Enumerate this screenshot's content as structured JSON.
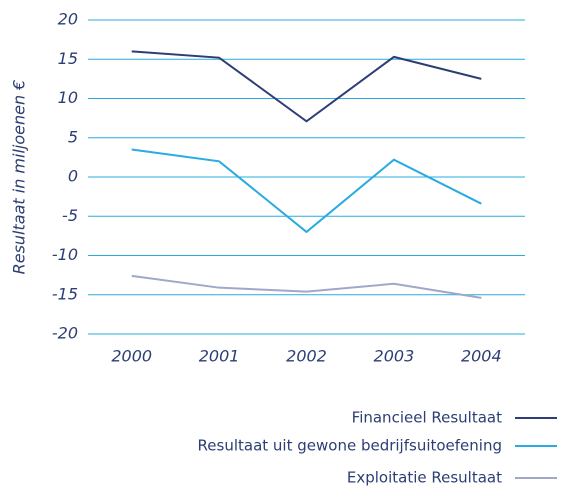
{
  "chart_data": {
    "type": "line",
    "y_axis_label": "Resultaat in miljoenen €",
    "categories": [
      "2000",
      "2001",
      "2002",
      "2003",
      "2004"
    ],
    "series": [
      {
        "name": "Financieel Resultaat",
        "color": "#2c3e73",
        "values": [
          16,
          15.2,
          7.1,
          15.3,
          12.5
        ]
      },
      {
        "name": "Resultaat uit gewone bedrijfsuitoefening",
        "color": "#29abe2",
        "values": [
          3.5,
          2,
          -7,
          2.2,
          -3.4
        ]
      },
      {
        "name": "Exploitatie Resultaat",
        "color": "#a0a8c8",
        "values": [
          -12.6,
          -14.1,
          -14.6,
          -13.6,
          -15.4
        ]
      }
    ],
    "ylim": [
      -20,
      20
    ],
    "yticks": [
      -20,
      -15,
      -10,
      -5,
      0,
      5,
      10,
      15,
      20
    ],
    "grid": true,
    "legend": "bottom-right"
  }
}
